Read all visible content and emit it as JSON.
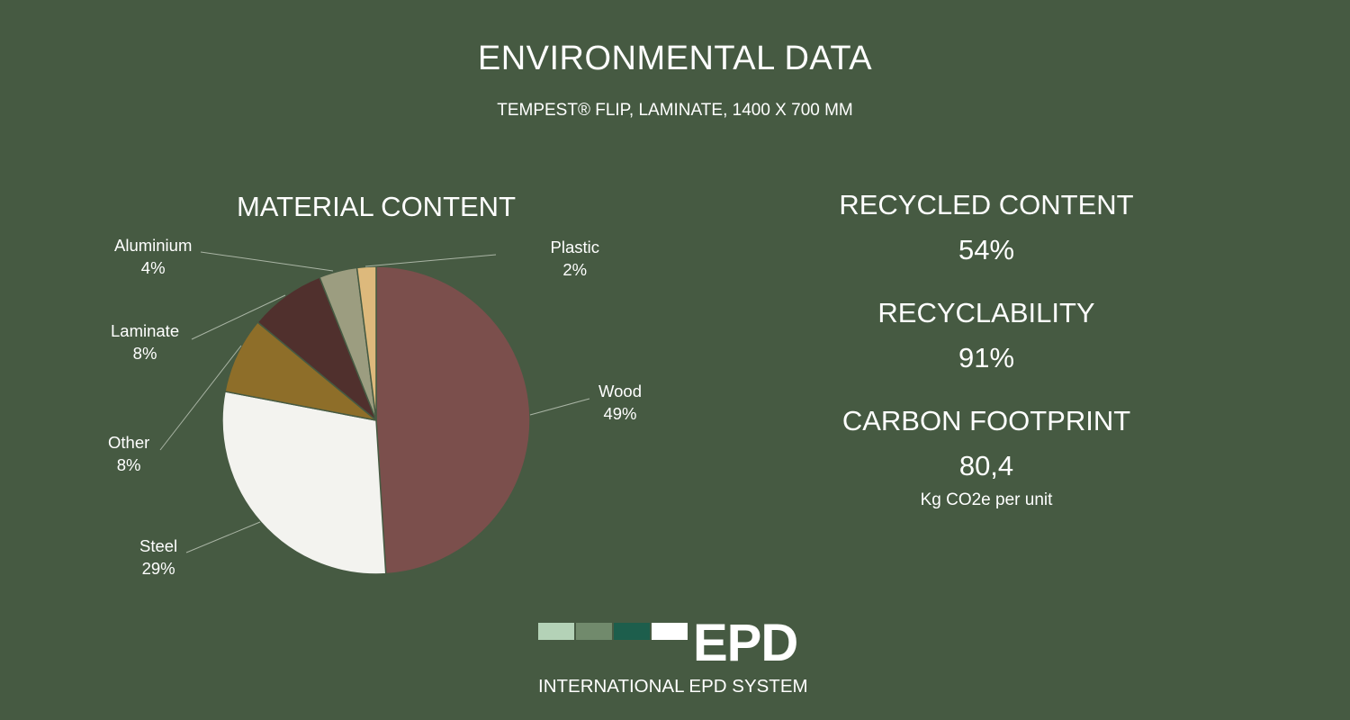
{
  "header": {
    "title": "ENVIRONMENTAL DATA",
    "subtitle": "TEMPEST® FLIP, LAMINATE, 1400 X 700 MM"
  },
  "chart_data": {
    "type": "pie",
    "title": "MATERIAL CONTENT",
    "start_angle_deg": 0,
    "direction": "clockwise",
    "slices": [
      {
        "name": "Wood",
        "value": 49,
        "label": "49%",
        "color": "#7b4f4c"
      },
      {
        "name": "Steel",
        "value": 29,
        "label": "29%",
        "color": "#f3f3ef"
      },
      {
        "name": "Other",
        "value": 8,
        "label": "8%",
        "color": "#8e6e29"
      },
      {
        "name": "Laminate",
        "value": 8,
        "label": "8%",
        "color": "#50302d"
      },
      {
        "name": "Aluminium",
        "value": 4,
        "label": "4%",
        "color": "#9c9d80"
      },
      {
        "name": "Plastic",
        "value": 2,
        "label": "2%",
        "color": "#ddb97c"
      }
    ]
  },
  "stats": {
    "recycled_content": {
      "label": "RECYCLED CONTENT",
      "value": "54%"
    },
    "recyclability": {
      "label": "RECYCLABILITY",
      "value": "91%"
    },
    "carbon_footprint": {
      "label": "CARBON FOOTPRINT",
      "value": "80,4",
      "unit": "Kg CO2e per unit"
    }
  },
  "logo": {
    "text": "EPD",
    "subtext": "INTERNATIONAL EPD SYSTEM",
    "block_colors": [
      "#b4d2b7",
      "#718a6c",
      "#1d5e4c",
      "#ffffff"
    ]
  }
}
